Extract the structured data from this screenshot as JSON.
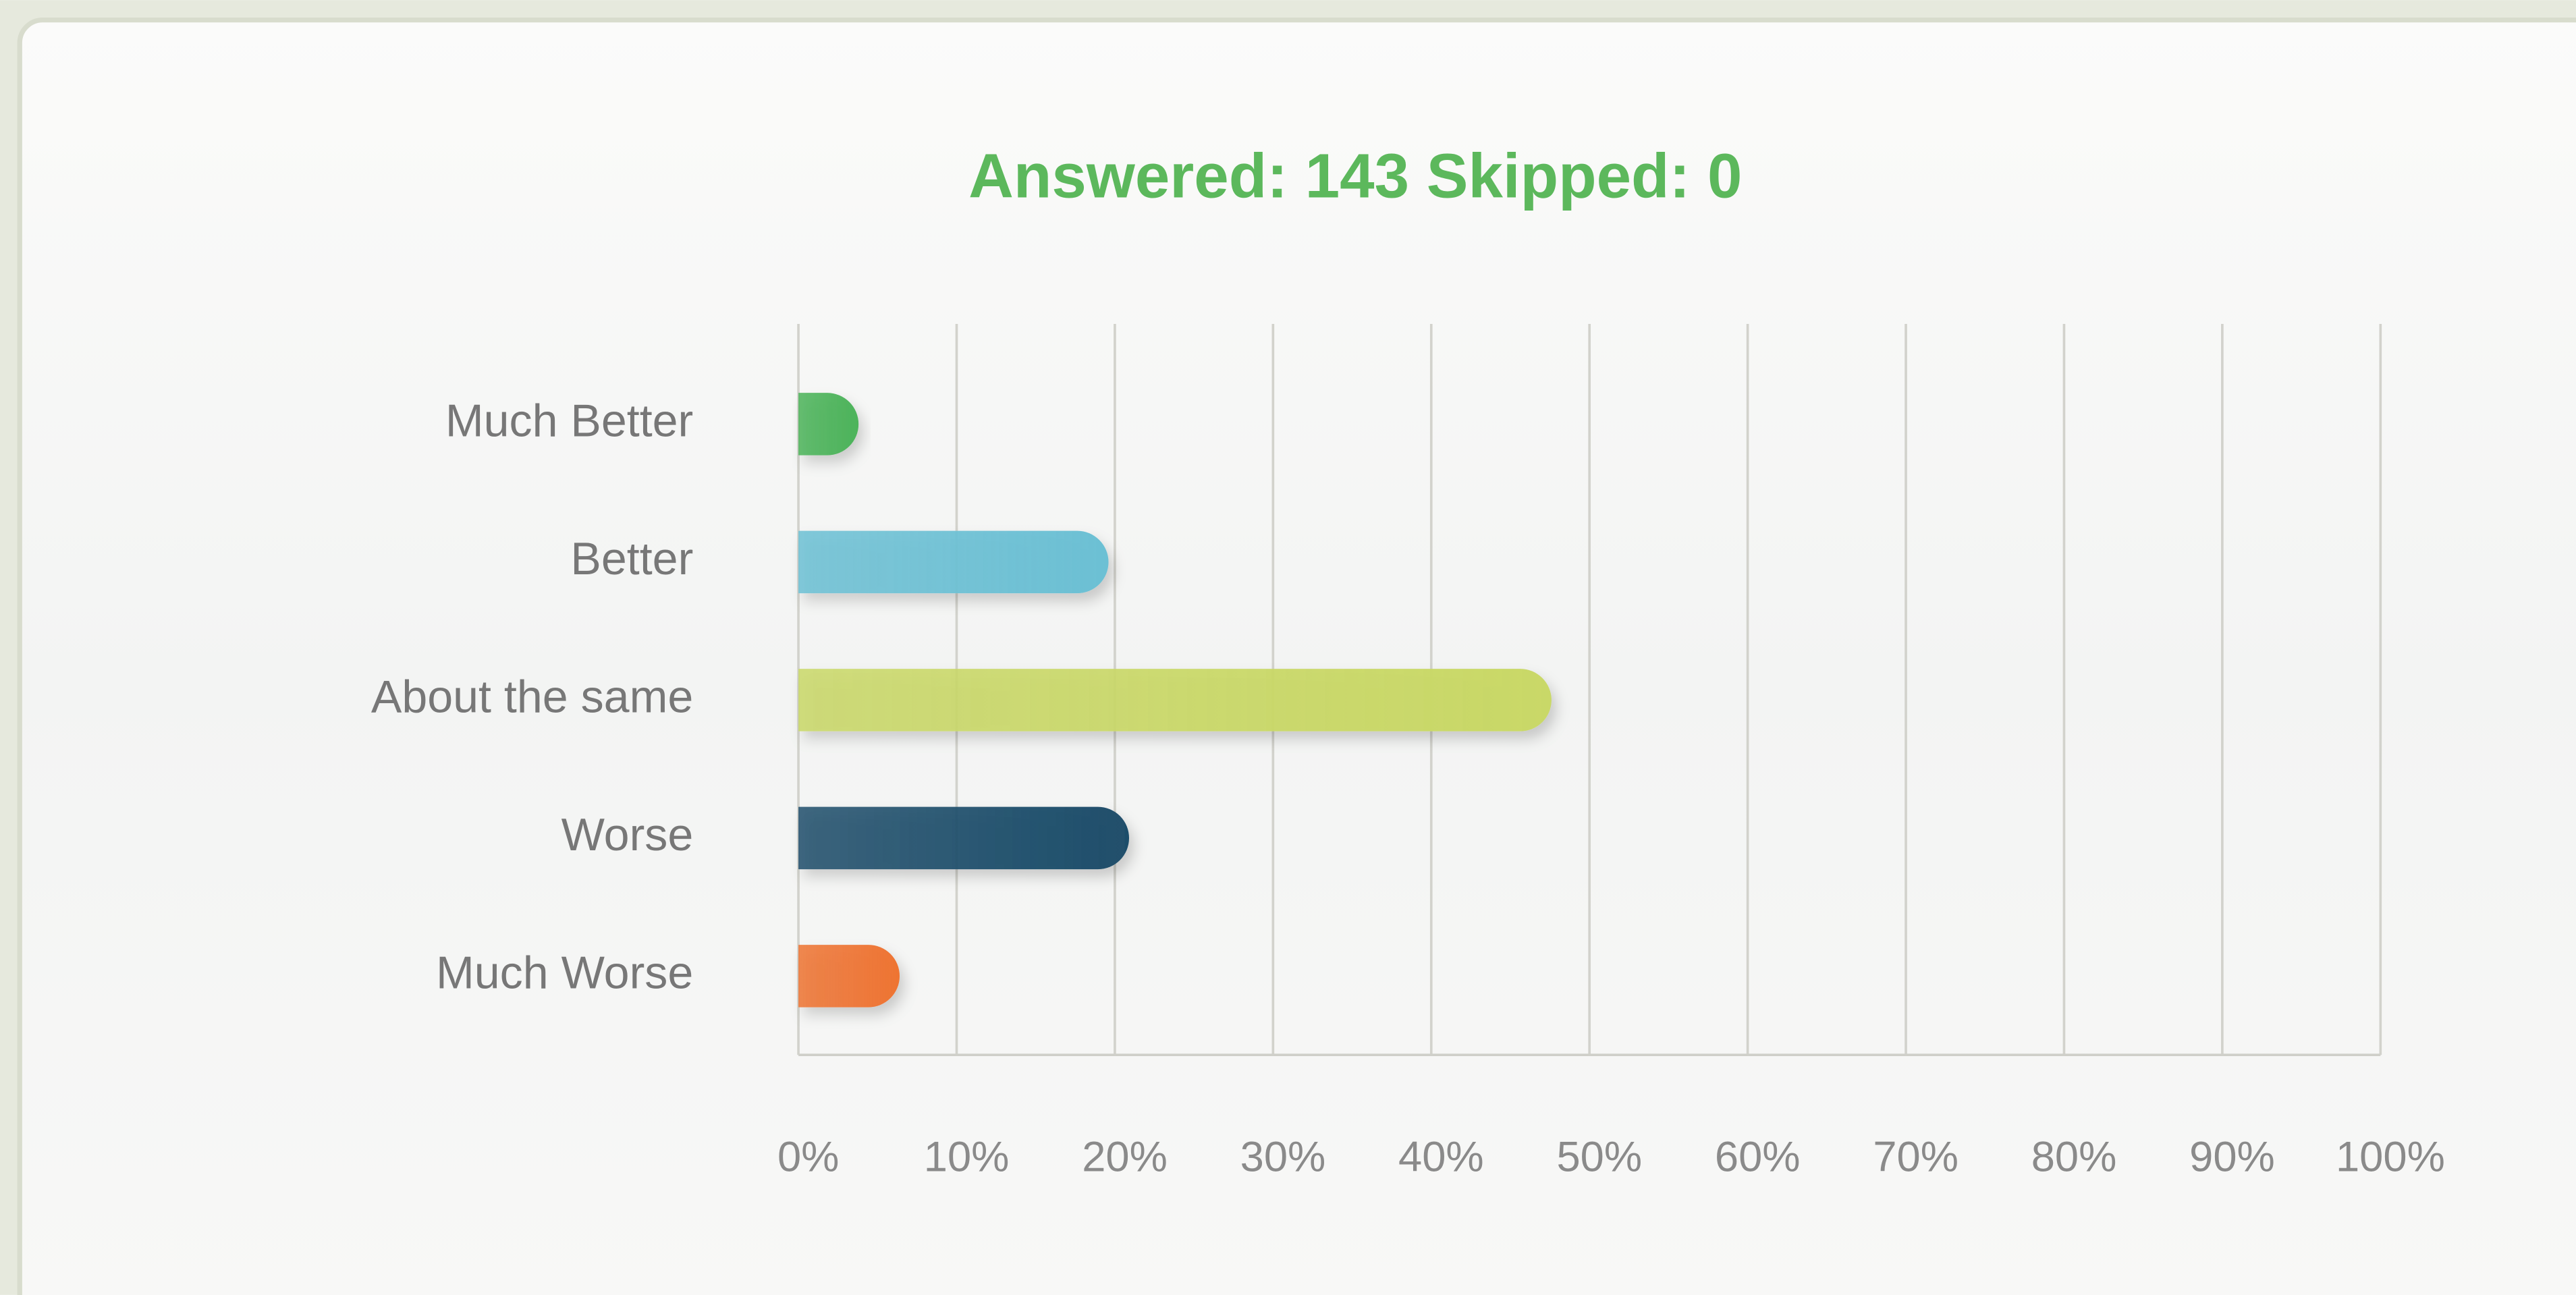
{
  "chart_data": {
    "type": "barh",
    "title": "Answered: 143 Skipped: 0",
    "categories": [
      "Much Better",
      "Better",
      "About the same",
      "Worse",
      "Much Worse"
    ],
    "values": [
      3.8,
      19.6,
      47.6,
      20.9,
      6.4
    ],
    "colors": [
      "#4cb35a",
      "#6cc0d4",
      "#c9d867",
      "#1f4e6b",
      "#ee7433"
    ],
    "xlim": [
      0,
      100
    ],
    "xticks": [
      {
        "value": 0,
        "label": "0%"
      },
      {
        "value": 10,
        "label": "10%"
      },
      {
        "value": 20,
        "label": "20%"
      },
      {
        "value": 30,
        "label": "30%"
      },
      {
        "value": 40,
        "label": "40%"
      },
      {
        "value": 50,
        "label": "50%"
      },
      {
        "value": 60,
        "label": "60%"
      },
      {
        "value": 70,
        "label": "70%"
      },
      {
        "value": 80,
        "label": "80%"
      },
      {
        "value": 90,
        "label": "90%"
      },
      {
        "value": 100,
        "label": "100%"
      }
    ],
    "grid": true
  }
}
